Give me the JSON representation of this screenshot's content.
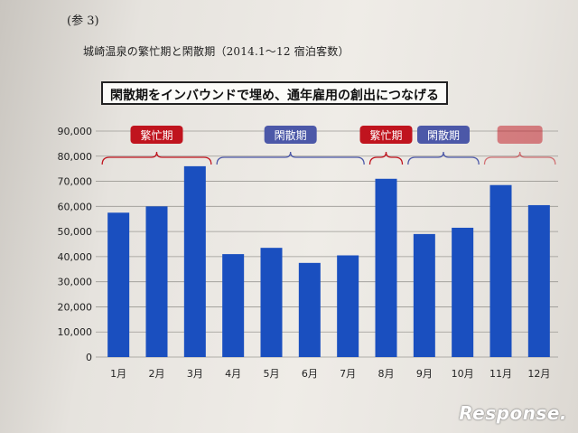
{
  "reference_label": "(参 3)",
  "subtitle": "城崎温泉の繁忙期と閑散期（2014.1～12 宿泊客数）",
  "banner": "閑散期をインバウンドで埋め、通年雇用の創出につなげる",
  "watermark": "Response.",
  "colors": {
    "bar": "#1a4fbf",
    "busy": "#c0141e",
    "off": "#4c58a8"
  },
  "chart_data": {
    "type": "bar",
    "title": "",
    "xlabel": "",
    "ylabel": "",
    "categories": [
      "1月",
      "2月",
      "3月",
      "4月",
      "5月",
      "6月",
      "7月",
      "8月",
      "9月",
      "10月",
      "11月",
      "12月"
    ],
    "values": [
      57500,
      60000,
      76000,
      41000,
      43500,
      37500,
      40500,
      71000,
      49000,
      51500,
      68500,
      60500
    ],
    "ylim": [
      0,
      90000
    ],
    "yticks": [
      "0",
      "10,000",
      "20,000",
      "30,000",
      "40,000",
      "50,000",
      "60,000",
      "70,000",
      "80,000",
      "90,000"
    ],
    "grid": true,
    "annotations": [
      {
        "label": "繁忙期",
        "from": 0,
        "to": 2,
        "kind": "busy"
      },
      {
        "label": "閑散期",
        "from": 3,
        "to": 6,
        "kind": "off"
      },
      {
        "label": "繁忙期",
        "from": 7,
        "to": 7,
        "kind": "busy"
      },
      {
        "label": "閑散期",
        "from": 8,
        "to": 9,
        "kind": "off"
      },
      {
        "label": "",
        "from": 10,
        "to": 11,
        "kind": "busy"
      }
    ]
  }
}
